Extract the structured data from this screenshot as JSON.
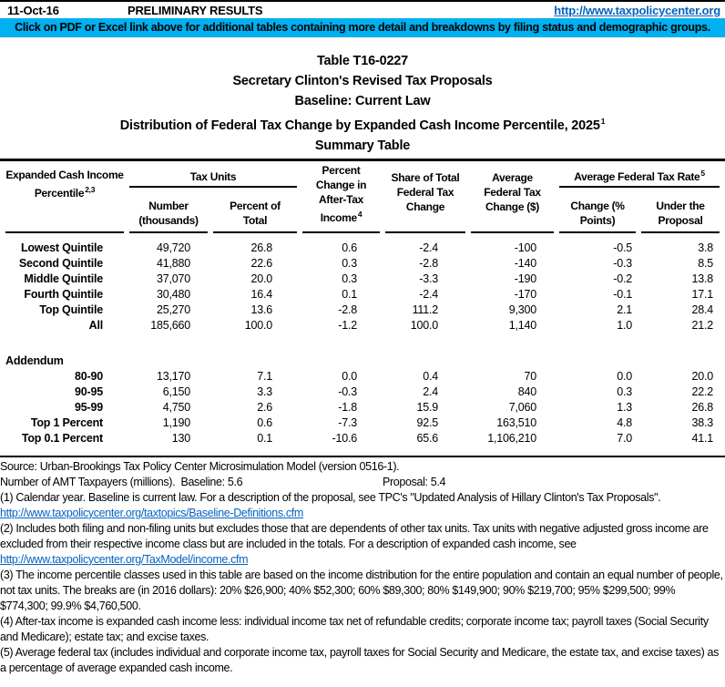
{
  "masthead": {
    "date": "11-Oct-16",
    "status": "PRELIMINARY RESULTS",
    "url": "http://www.taxpolicycenter.org"
  },
  "banner": {
    "text": "Click on PDF or Excel link above for additional tables containing more detail and breakdowns by filing status and demographic groups.",
    "background": "#00B0F0"
  },
  "title": {
    "l1": "Table T16-0227",
    "l2": "Secretary Clinton's Revised Tax Proposals",
    "l3": "Baseline: Current Law",
    "l4": "Distribution of Federal Tax Change by Expanded Cash Income Percentile, 2025",
    "l4_sup": "1",
    "l5": "Summary Table"
  },
  "table": {
    "col1": {
      "l1": "Expanded Cash Income",
      "l2": "Percentile",
      "sup": "2,3"
    },
    "group1": {
      "label": "Tax Units"
    },
    "group2": {
      "label": "Average Federal Tax Rate",
      "sup": "5"
    },
    "col2": {
      "l1": "Number",
      "l2": "(thousands)"
    },
    "col3": {
      "l1": "Percent of",
      "l2": "Total"
    },
    "col4": {
      "l1": "Percent",
      "l2": "Change in",
      "l3": "After-Tax",
      "l4": "Income",
      "sup": "4"
    },
    "col5": {
      "l1": "Share of Total",
      "l2": "Federal Tax",
      "l3": "Change"
    },
    "col6": {
      "l1": "Average",
      "l2": "Federal Tax",
      "l3": "Change ($)"
    },
    "col7": {
      "l1": "Change (%",
      "l2": "Points)"
    },
    "col8": {
      "l1": "Under the",
      "l2": "Proposal"
    },
    "rows": [
      [
        "Lowest Quintile",
        "49,720",
        "26.8",
        "0.6",
        "-2.4",
        "-100",
        "-0.5",
        "3.8"
      ],
      [
        "Second Quintile",
        "41,880",
        "22.6",
        "0.3",
        "-2.8",
        "-140",
        "-0.3",
        "8.5"
      ],
      [
        "Middle Quintile",
        "37,070",
        "20.0",
        "0.3",
        "-3.3",
        "-190",
        "-0.2",
        "13.8"
      ],
      [
        "Fourth Quintile",
        "30,480",
        "16.4",
        "0.1",
        "-2.4",
        "-170",
        "-0.1",
        "17.1"
      ],
      [
        "Top Quintile",
        "25,270",
        "13.6",
        "-2.8",
        "111.2",
        "9,300",
        "2.1",
        "28.4"
      ],
      [
        "All",
        "185,660",
        "100.0",
        "-1.2",
        "100.0",
        "1,140",
        "1.0",
        "21.2"
      ]
    ],
    "addendum_label": "Addendum",
    "addendum_rows": [
      [
        "80-90",
        "13,170",
        "7.1",
        "0.0",
        "0.4",
        "70",
        "0.0",
        "20.0"
      ],
      [
        "90-95",
        "6,150",
        "3.3",
        "-0.3",
        "2.4",
        "840",
        "0.3",
        "22.2"
      ],
      [
        "95-99",
        "4,750",
        "2.6",
        "-1.8",
        "15.9",
        "7,060",
        "1.3",
        "26.8"
      ],
      [
        "Top 1 Percent",
        "1,190",
        "0.6",
        "-7.3",
        "92.5",
        "163,510",
        "4.8",
        "38.3"
      ],
      [
        "Top 0.1 Percent",
        "130",
        "0.1",
        "-10.6",
        "65.6",
        "1,106,210",
        "7.0",
        "41.1"
      ]
    ]
  },
  "footnotes": [
    {
      "kind": "text",
      "text": "Source: Urban-Brookings Tax Policy Center Microsimulation Model (version 0516-1)."
    },
    {
      "kind": "amt",
      "left": "Number of AMT Taxpayers (millions).  Baseline: 5.6",
      "right": "Proposal: 5.4"
    },
    {
      "kind": "text",
      "text": "(1) Calendar year. Baseline is current law. For a description of the proposal, see TPC's \"Updated Analysis of Hillary Clinton's Tax Proposals\"."
    },
    {
      "kind": "link",
      "text": "http://www.taxpolicycenter.org/taxtopics/Baseline-Definitions.cfm"
    },
    {
      "kind": "text",
      "text": "(2) Includes both filing and non-filing units but excludes those that are dependents of other tax units. Tax units with negative adjusted gross income are excluded from their respective income class but are included in the totals. For a description of expanded cash income, see"
    },
    {
      "kind": "link",
      "text": "http://www.taxpolicycenter.org/TaxModel/income.cfm"
    },
    {
      "kind": "text",
      "text": "(3) The income percentile classes used in this table are based on the income distribution for the entire population and contain an equal number of people, not tax units. The breaks are (in 2016 dollars): 20% $26,900; 40% $52,300; 60% $89,300; 80% $149,900; 90% $219,700; 95% $299,500; 99% $774,300; 99.9% $4,760,500."
    },
    {
      "kind": "text",
      "text": "(4) After-tax income is expanded cash income less: individual income tax net of refundable credits; corporate income tax; payroll taxes (Social Security and Medicare); estate tax; and excise taxes."
    },
    {
      "kind": "text",
      "text": "(5) Average federal tax (includes individual and corporate income tax, payroll taxes for Social Security and Medicare, the estate tax, and excise taxes) as a percentage of average expanded cash income."
    }
  ]
}
